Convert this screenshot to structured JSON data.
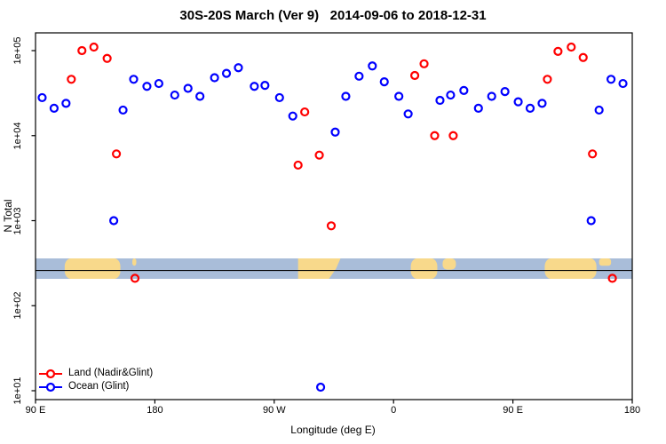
{
  "title": "30S-20S March (Ver 9)   2014-09-06 to 2018-12-31",
  "legend": {
    "position": "bottom-left",
    "items": [
      {
        "label": "Land (Nadir&Glint)",
        "color": "#ff0000"
      },
      {
        "label": "Ocean (Glint)",
        "color": "#0000ff"
      }
    ]
  },
  "chart_data": {
    "type": "scatter",
    "title": "30S-20S March (Ver 9)   2014-09-06 to 2018-12-31",
    "xlabel": "Longitude (deg E)",
    "ylabel": "N Total",
    "grid": false,
    "marker": "open-circle",
    "x_axis": {
      "note": "longitude, unwrapped degrees east from 90E to 540 (=180 second time)",
      "range": [
        90,
        540
      ],
      "ticks": [
        90,
        180,
        270,
        360,
        450,
        540
      ],
      "tick_labels": [
        "90 E",
        "180",
        "90 W",
        "0",
        "90 E",
        "180"
      ]
    },
    "y_axis": {
      "scale": "log10",
      "range": [
        8,
        160000
      ],
      "ticks": [
        100000,
        10000,
        1000,
        100,
        10
      ],
      "tick_labels": [
        "1e+05",
        "1e+04",
        "1e+03",
        "1e+02",
        "1e+01"
      ]
    },
    "series": [
      {
        "name": "Land (Nadir&Glint)",
        "color": "#ff0000",
        "points": [
          [
            117,
            46000
          ],
          [
            125,
            100000
          ],
          [
            134,
            110000
          ],
          [
            144,
            81000
          ],
          [
            151,
            6100
          ],
          [
            165,
            210
          ],
          [
            288,
            4500
          ],
          [
            293,
            19000
          ],
          [
            304,
            5900
          ],
          [
            313,
            870
          ],
          [
            376,
            51000
          ],
          [
            383,
            70000
          ],
          [
            391,
            10000
          ],
          [
            405,
            10000
          ],
          [
            476,
            46000
          ],
          [
            484,
            98000
          ],
          [
            494,
            110000
          ],
          [
            503,
            83000
          ],
          [
            510,
            6100
          ],
          [
            525,
            210
          ]
        ]
      },
      {
        "name": "Ocean (Glint)",
        "color": "#0000ff",
        "points": [
          [
            95,
            28000
          ],
          [
            104,
            21000
          ],
          [
            113,
            24000
          ],
          [
            149,
            1000
          ],
          [
            156,
            20000
          ],
          [
            164,
            46000
          ],
          [
            174,
            38000
          ],
          [
            183,
            41000
          ],
          [
            195,
            30000
          ],
          [
            205,
            36000
          ],
          [
            214,
            29000
          ],
          [
            225,
            48000
          ],
          [
            234,
            54000
          ],
          [
            243,
            63000
          ],
          [
            255,
            38000
          ],
          [
            263,
            39000
          ],
          [
            274,
            28000
          ],
          [
            284,
            17000
          ],
          [
            305,
            11
          ],
          [
            316,
            11000
          ],
          [
            324,
            29000
          ],
          [
            334,
            50000
          ],
          [
            344,
            66000
          ],
          [
            353,
            43000
          ],
          [
            364,
            29000
          ],
          [
            371,
            18000
          ],
          [
            395,
            26000
          ],
          [
            403,
            30000
          ],
          [
            413,
            34000
          ],
          [
            424,
            21000
          ],
          [
            434,
            29000
          ],
          [
            444,
            33000
          ],
          [
            454,
            25000
          ],
          [
            463,
            21000
          ],
          [
            472,
            24000
          ],
          [
            509,
            1000
          ],
          [
            515,
            20000
          ],
          [
            524,
            46000
          ],
          [
            533,
            41000
          ]
        ]
      }
    ],
    "map_band": {
      "description": "world-map strip of the 30S-20S latitude band drawn across the plot",
      "ocean_color": "#a9bdd9",
      "land_color": "#f8d98b",
      "value_range": [
        207,
        360
      ],
      "center_line_value": 260,
      "land_segments": [
        {
          "name": "australia",
          "range": [
            112,
            154
          ],
          "extent": "full"
        },
        {
          "name": "new-caledonia",
          "range": [
            163,
            166
          ],
          "extent": "top-sliver"
        },
        {
          "name": "south-america",
          "range": [
            288,
            320
          ],
          "extent": "taper-right"
        },
        {
          "name": "africa",
          "range": [
            373,
            393
          ],
          "extent": "full"
        },
        {
          "name": "madagascar",
          "range": [
            397,
            407
          ],
          "extent": "top"
        },
        {
          "name": "australia-repeat",
          "range": [
            474,
            513
          ],
          "extent": "full"
        },
        {
          "name": "new-caledonia-repeat",
          "range": [
            515,
            524
          ],
          "extent": "top-sliver"
        }
      ]
    }
  }
}
